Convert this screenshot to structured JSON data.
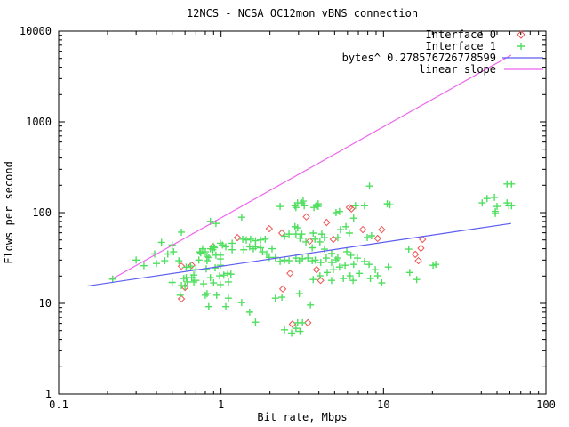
{
  "chart_data": {
    "type": "scatter",
    "title": "12NCS - NCSA OC12mon vBNS connection",
    "xlabel": "Bit rate, Mbps",
    "ylabel": "Flows per second",
    "xscale": "log",
    "yscale": "log",
    "xlim": [
      0.1,
      100
    ],
    "ylim": [
      1,
      10000
    ],
    "x_ticks": [
      0.1,
      1,
      10,
      100
    ],
    "x_tick_labels": [
      "0.1",
      "1",
      "10",
      "100"
    ],
    "y_ticks": [
      1,
      10,
      100,
      1000,
      10000
    ],
    "y_tick_labels": [
      "1",
      "10",
      "100",
      "1000",
      "10000"
    ],
    "grid": false,
    "legend_position": "top-right-inside",
    "series": [
      {
        "name": "Interface 0",
        "kind": "points",
        "marker": "diamond",
        "color": "#ef5353",
        "points": [
          [
            0.57,
            25.7
          ],
          [
            0.57,
            11.2
          ],
          [
            0.6,
            15.0
          ],
          [
            0.66,
            26.3
          ],
          [
            0.89,
            42
          ],
          [
            1.26,
            53
          ],
          [
            1.98,
            66.5
          ],
          [
            2.37,
            59.5
          ],
          [
            2.4,
            14.4
          ],
          [
            2.66,
            21.4
          ],
          [
            2.75,
            5.9
          ],
          [
            3.35,
            90
          ],
          [
            3.42,
            6.1
          ],
          [
            3.51,
            48.6
          ],
          [
            3.87,
            23.5
          ],
          [
            4.1,
            17.9
          ],
          [
            4.46,
            78
          ],
          [
            4.91,
            50.8
          ],
          [
            6.16,
            114
          ],
          [
            6.35,
            110
          ],
          [
            7.46,
            65
          ],
          [
            9.2,
            52
          ],
          [
            9.76,
            65
          ],
          [
            15.7,
            34.7
          ],
          [
            16.4,
            29.5
          ],
          [
            17.0,
            40.5
          ],
          [
            17.4,
            50.8
          ]
        ]
      },
      {
        "name": "Interface 1",
        "kind": "points",
        "marker": "plus",
        "color": "#4fdf5f",
        "points": [
          [
            0.215,
            18.5
          ],
          [
            0.3,
            30
          ],
          [
            0.335,
            26
          ],
          [
            0.39,
            35
          ],
          [
            0.4,
            27.5
          ],
          [
            0.43,
            47
          ],
          [
            0.45,
            29.5
          ],
          [
            0.47,
            35
          ],
          [
            0.5,
            17
          ],
          [
            0.5,
            44
          ],
          [
            0.51,
            37
          ],
          [
            0.55,
            29.5
          ],
          [
            0.56,
            12.3
          ],
          [
            0.57,
            61
          ],
          [
            0.57,
            15.7
          ],
          [
            0.59,
            18.8
          ],
          [
            0.6,
            15.4
          ],
          [
            0.61,
            25
          ],
          [
            0.61,
            19.2
          ],
          [
            0.62,
            17.2
          ],
          [
            0.65,
            25.7
          ],
          [
            0.66,
            19.2
          ],
          [
            0.68,
            20.5
          ],
          [
            0.68,
            17.2
          ],
          [
            0.7,
            17.9
          ],
          [
            0.7,
            23.5
          ],
          [
            0.73,
            30
          ],
          [
            0.74,
            37
          ],
          [
            0.75,
            36
          ],
          [
            0.77,
            40
          ],
          [
            0.78,
            16.4
          ],
          [
            0.8,
            37
          ],
          [
            0.8,
            12.3
          ],
          [
            0.81,
            24
          ],
          [
            0.82,
            12.8
          ],
          [
            0.82,
            33
          ],
          [
            0.82,
            29.5
          ],
          [
            0.84,
            32
          ],
          [
            0.84,
            9.2
          ],
          [
            0.86,
            80
          ],
          [
            0.86,
            40
          ],
          [
            0.86,
            19.2
          ],
          [
            0.89,
            39
          ],
          [
            0.9,
            42
          ],
          [
            0.9,
            16.8
          ],
          [
            0.91,
            41
          ],
          [
            0.92,
            24.6
          ],
          [
            0.93,
            76
          ],
          [
            0.93,
            34
          ],
          [
            0.94,
            12.3
          ],
          [
            0.98,
            20.1
          ],
          [
            0.99,
            26.3
          ],
          [
            0.99,
            30.9
          ],
          [
            0.99,
            34
          ],
          [
            0.99,
            46
          ],
          [
            0.99,
            16.1
          ],
          [
            1.02,
            44
          ],
          [
            1.04,
            20.5
          ],
          [
            1.07,
            42
          ],
          [
            1.07,
            9.2
          ],
          [
            1.1,
            21.4
          ],
          [
            1.11,
            17.2
          ],
          [
            1.11,
            11.4
          ],
          [
            1.15,
            21
          ],
          [
            1.17,
            46
          ],
          [
            1.17,
            39
          ],
          [
            1.34,
            89
          ],
          [
            1.34,
            10.2
          ],
          [
            1.36,
            51
          ],
          [
            1.38,
            39
          ],
          [
            1.43,
            50
          ],
          [
            1.5,
            42
          ],
          [
            1.5,
            8.0
          ],
          [
            1.52,
            51
          ],
          [
            1.58,
            40
          ],
          [
            1.63,
            49
          ],
          [
            1.63,
            42
          ],
          [
            1.63,
            6.2
          ],
          [
            1.75,
            50
          ],
          [
            1.75,
            41
          ],
          [
            1.8,
            37
          ],
          [
            1.87,
            51
          ],
          [
            1.91,
            35
          ],
          [
            1.98,
            32
          ],
          [
            2.06,
            40
          ],
          [
            2.16,
            32
          ],
          [
            2.16,
            11.4
          ],
          [
            2.31,
            117
          ],
          [
            2.31,
            29
          ],
          [
            2.37,
            11.7
          ],
          [
            2.46,
            30
          ],
          [
            2.46,
            55
          ],
          [
            2.46,
            5.1
          ],
          [
            2.62,
            58
          ],
          [
            2.62,
            29.5
          ],
          [
            2.72,
            4.7
          ],
          [
            2.85,
            119
          ],
          [
            2.85,
            70
          ],
          [
            2.89,
            114
          ],
          [
            2.89,
            58
          ],
          [
            2.89,
            31.6
          ],
          [
            2.89,
            5.3
          ],
          [
            2.96,
            128
          ],
          [
            2.96,
            68
          ],
          [
            2.96,
            6.1
          ],
          [
            3.03,
            29.5
          ],
          [
            3.03,
            12.8
          ],
          [
            3.06,
            52
          ],
          [
            3.06,
            4.9
          ],
          [
            3.14,
            128
          ],
          [
            3.14,
            58
          ],
          [
            3.17,
            31
          ],
          [
            3.17,
            6.1
          ],
          [
            3.2,
            134
          ],
          [
            3.25,
            119
          ],
          [
            3.33,
            47.5
          ],
          [
            3.42,
            31.6
          ],
          [
            3.55,
            9.6
          ],
          [
            3.64,
            41
          ],
          [
            3.64,
            29.5
          ],
          [
            3.69,
            59.5
          ],
          [
            3.69,
            18.3
          ],
          [
            3.73,
            114
          ],
          [
            3.78,
            51
          ],
          [
            3.8,
            30
          ],
          [
            3.87,
            119
          ],
          [
            3.96,
            125
          ],
          [
            3.96,
            117
          ],
          [
            4.06,
            47.5
          ],
          [
            4.06,
            20.1
          ],
          [
            4.11,
            28.2
          ],
          [
            4.17,
            58
          ],
          [
            4.33,
            53
          ],
          [
            4.33,
            39.6
          ],
          [
            4.44,
            31.6
          ],
          [
            4.5,
            21.9
          ],
          [
            4.79,
            35.4
          ],
          [
            4.79,
            28.2
          ],
          [
            4.79,
            17.9
          ],
          [
            4.91,
            23.5
          ],
          [
            5.1,
            100
          ],
          [
            5.1,
            30.2
          ],
          [
            5.23,
            53
          ],
          [
            5.23,
            31.6
          ],
          [
            5.36,
            103
          ],
          [
            5.36,
            25.1
          ],
          [
            5.43,
            65
          ],
          [
            5.66,
            18.8
          ],
          [
            5.8,
            26.3
          ],
          [
            5.87,
            70
          ],
          [
            5.94,
            37.1
          ],
          [
            6.16,
            59.5
          ],
          [
            6.23,
            20.1
          ],
          [
            6.3,
            33.9
          ],
          [
            6.5,
            17.9
          ],
          [
            6.55,
            87
          ],
          [
            6.55,
            26.9
          ],
          [
            6.72,
            119
          ],
          [
            6.9,
            31.6
          ],
          [
            7.1,
            21.4
          ],
          [
            7.64,
            119
          ],
          [
            7.64,
            28.9
          ],
          [
            7.94,
            53.2
          ],
          [
            8.15,
            26.9
          ],
          [
            8.2,
            196
          ],
          [
            8.3,
            18.8
          ],
          [
            8.44,
            55.6
          ],
          [
            8.9,
            23.5
          ],
          [
            9.2,
            20.1
          ],
          [
            9.76,
            16.8
          ],
          [
            10.55,
            125
          ],
          [
            10.7,
            25.1
          ],
          [
            10.95,
            122
          ],
          [
            14.3,
            39.6
          ],
          [
            14.5,
            21.9
          ],
          [
            16.0,
            18.3
          ],
          [
            20.2,
            26.3
          ],
          [
            21.0,
            26.9
          ],
          [
            40.5,
            128
          ],
          [
            43.4,
            143
          ],
          [
            48.2,
            147
          ],
          [
            48.8,
            103
          ],
          [
            48.8,
            98
          ],
          [
            50,
            117
          ],
          [
            57.6,
            207
          ],
          [
            57.6,
            128
          ],
          [
            59.1,
            119
          ],
          [
            61.4,
            207
          ],
          [
            61.4,
            119
          ]
        ]
      },
      {
        "name": "bytes^ 0.278576726778599",
        "kind": "line",
        "color": "#5c5cf0",
        "points": [
          [
            0.15,
            15.5
          ],
          [
            61,
            76
          ]
        ]
      },
      {
        "name": "linear slope",
        "kind": "line",
        "color": "#ee66ee",
        "points": [
          [
            0.215,
            18.7
          ],
          [
            61,
            5430
          ]
        ]
      }
    ]
  }
}
